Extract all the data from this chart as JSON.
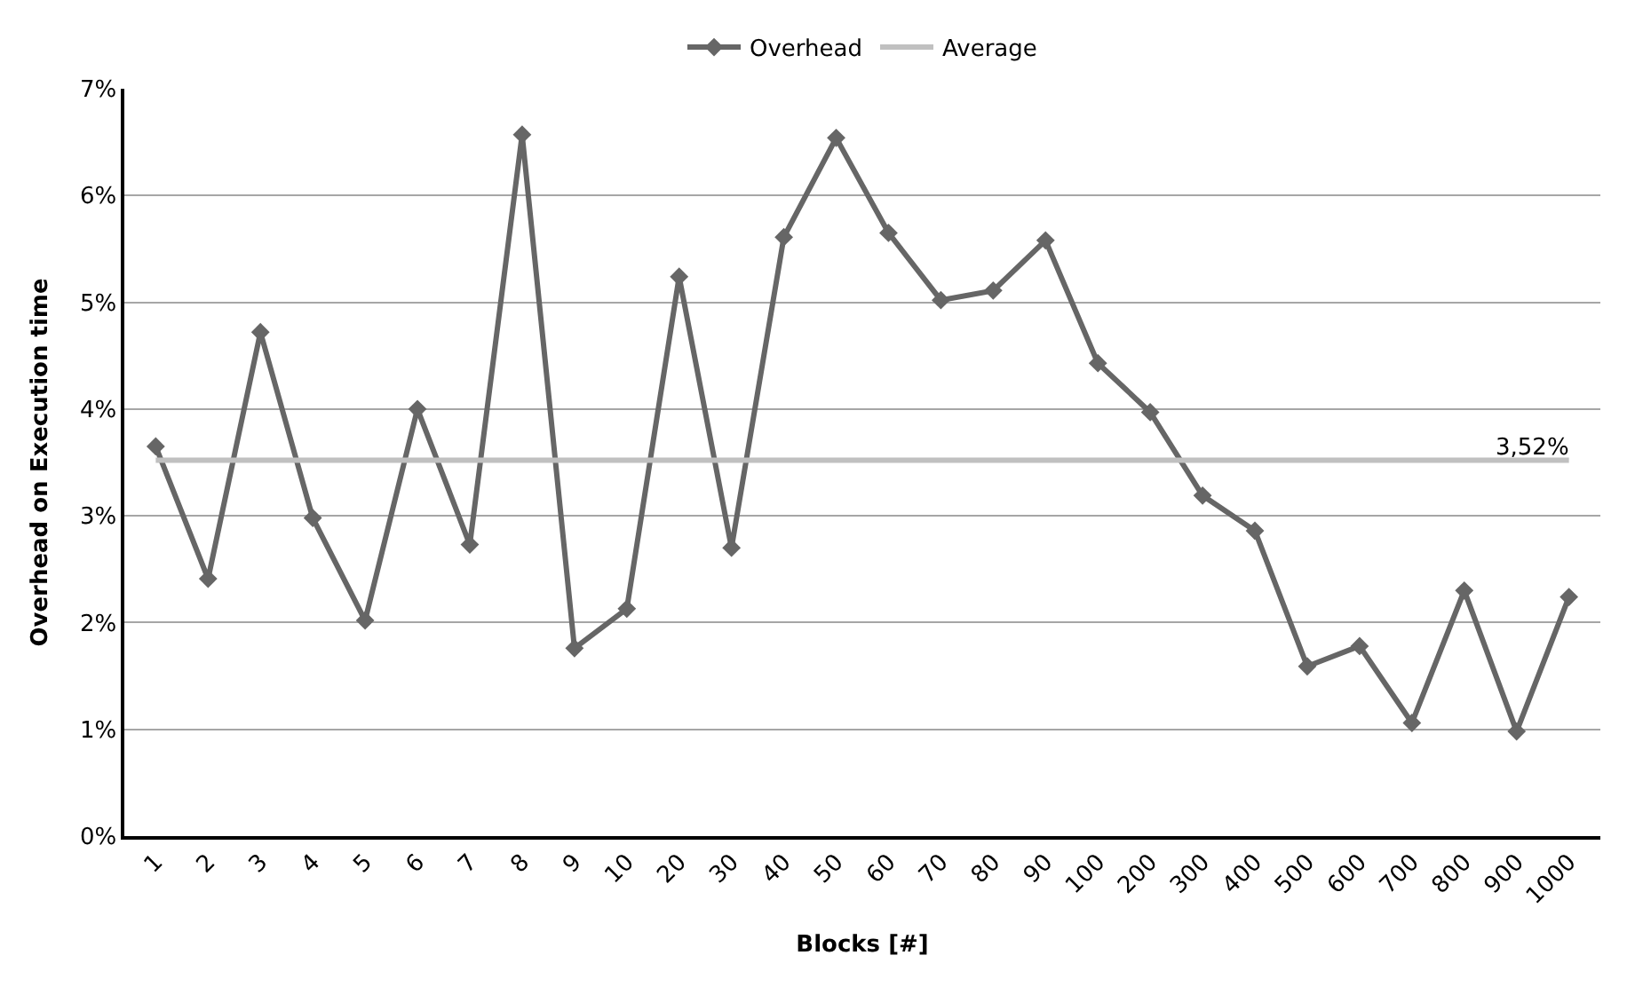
{
  "chart_data": {
    "type": "line",
    "xlabel": "Blocks [#]",
    "ylabel": "Overhead on Execution time",
    "categories": [
      "1",
      "2",
      "3",
      "4",
      "5",
      "6",
      "7",
      "8",
      "9",
      "10",
      "20",
      "30",
      "40",
      "50",
      "60",
      "70",
      "80",
      "90",
      "100",
      "200",
      "300",
      "400",
      "500",
      "600",
      "700",
      "800",
      "900",
      "1000"
    ],
    "series": [
      {
        "name": "Overhead",
        "color": "#666666",
        "marker": "diamond",
        "values": [
          3.65,
          2.41,
          4.72,
          2.98,
          2.02,
          4.0,
          2.73,
          6.57,
          1.76,
          2.13,
          5.24,
          2.7,
          5.61,
          6.54,
          5.65,
          5.02,
          5.11,
          5.58,
          4.43,
          3.97,
          3.19,
          2.86,
          1.59,
          1.78,
          1.06,
          2.3,
          0.98,
          2.24
        ]
      },
      {
        "name": "Average",
        "color": "#c0c0c0",
        "marker": "none",
        "values": [
          3.52,
          3.52,
          3.52,
          3.52,
          3.52,
          3.52,
          3.52,
          3.52,
          3.52,
          3.52,
          3.52,
          3.52,
          3.52,
          3.52,
          3.52,
          3.52,
          3.52,
          3.52,
          3.52,
          3.52,
          3.52,
          3.52,
          3.52,
          3.52,
          3.52,
          3.52,
          3.52,
          3.52
        ],
        "value_labels": [
          null,
          null,
          null,
          null,
          null,
          null,
          null,
          null,
          null,
          null,
          null,
          null,
          null,
          null,
          null,
          null,
          null,
          null,
          null,
          null,
          null,
          null,
          null,
          null,
          null,
          null,
          null,
          "3,52%"
        ]
      }
    ],
    "ylim": [
      0,
      7
    ],
    "yticks": [
      {
        "value": 0,
        "label": "0%"
      },
      {
        "value": 1,
        "label": "1%"
      },
      {
        "value": 2,
        "label": "2%"
      },
      {
        "value": 3,
        "label": "3%"
      },
      {
        "value": 4,
        "label": "4%"
      },
      {
        "value": 5,
        "label": "5%"
      },
      {
        "value": 6,
        "label": "6%"
      },
      {
        "value": 7,
        "label": "7%"
      }
    ],
    "grid": "y",
    "legend": "top"
  }
}
